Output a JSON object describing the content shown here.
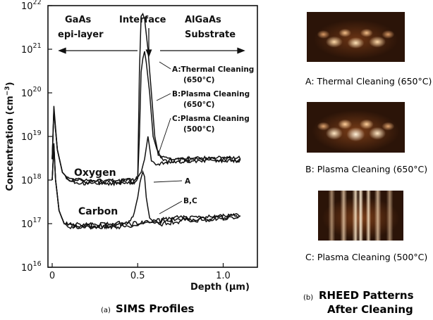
{
  "chart_data": {
    "type": "line",
    "ylabel": "Concentration (cm$^{-3}$)",
    "ylabel_text": "Concentration (cm",
    "ylabel_sup": "−3",
    "ylabel_close": ")",
    "xlabel": "Depth (μm)",
    "y_scale": "log",
    "ylim": [
      1e+16,
      1e+22
    ],
    "xlim": [
      0,
      1.2
    ],
    "x_ticks": [
      "0",
      "0.5",
      "1.0"
    ],
    "y_ticks": [
      {
        "base": "10",
        "exp": "16"
      },
      {
        "base": "10",
        "exp": "17"
      },
      {
        "base": "10",
        "exp": "18"
      },
      {
        "base": "10",
        "exp": "19"
      },
      {
        "base": "10",
        "exp": "20"
      },
      {
        "base": "10",
        "exp": "21"
      },
      {
        "base": "10",
        "exp": "22"
      }
    ],
    "regions": {
      "left": "GaAs epi-layer",
      "left_line1": "GaAs",
      "left_line2": "epi-layer",
      "middle": "Interface",
      "right": "AlGaAs Substrate",
      "right_line1": "AlGaAs",
      "right_line2": "Substrate"
    },
    "annotations": {
      "oxygen": "Oxygen",
      "carbon": "Carbon",
      "a_line1": "A:Thermal Cleaning",
      "a_line2": "(650°C)",
      "b_line1": "B:Plasma Cleaning",
      "b_line2": "(650°C)",
      "c_line1": "C:Plasma Cleaning",
      "c_line2": "(500°C)",
      "carbon_a": "A",
      "carbon_bc": "B,C"
    },
    "series": [
      {
        "name": "Oxygen A",
        "x": [
          0.0,
          0.01,
          0.03,
          0.06,
          0.1,
          0.2,
          0.3,
          0.4,
          0.48,
          0.5,
          0.51,
          0.52,
          0.53,
          0.54,
          0.56,
          0.58,
          0.6,
          0.62,
          0.65,
          0.7,
          0.8,
          0.9,
          1.0,
          1.1
        ],
        "y": [
          3e+18,
          5e+19,
          5e+18,
          1.5e+18,
          1e+18,
          9e+17,
          9e+17,
          9e+17,
          9.5e+17,
          1.1e+18,
          3e+20,
          5e+21,
          7e+21,
          5e+21,
          1e+21,
          1e+20,
          1e+19,
          4e+18,
          3e+18,
          2.8e+18,
          2.9e+18,
          3e+18,
          3e+18,
          3e+18
        ]
      },
      {
        "name": "Oxygen B",
        "x": [
          0.0,
          0.01,
          0.03,
          0.06,
          0.1,
          0.2,
          0.3,
          0.4,
          0.48,
          0.5,
          0.51,
          0.52,
          0.53,
          0.54,
          0.55,
          0.57,
          0.59,
          0.62,
          0.65,
          0.7,
          0.8,
          0.9,
          1.0,
          1.1
        ],
        "y": [
          3e+18,
          4e+19,
          5e+18,
          1.5e+18,
          1e+18,
          9e+17,
          9e+17,
          9e+17,
          9.5e+17,
          1.1e+18,
          1e+19,
          3e+20,
          7e+20,
          8e+20,
          5e+20,
          1e+20,
          1e+19,
          4e+18,
          3e+18,
          2.8e+18,
          2.9e+18,
          3e+18,
          3e+18,
          3e+18
        ]
      },
      {
        "name": "Oxygen C",
        "x": [
          0.0,
          0.01,
          0.03,
          0.06,
          0.1,
          0.2,
          0.3,
          0.4,
          0.48,
          0.5,
          0.52,
          0.54,
          0.56,
          0.58,
          0.6,
          0.62,
          0.65,
          0.7,
          0.8,
          0.9,
          1.0,
          1.1
        ],
        "y": [
          3e+18,
          4e+19,
          5e+18,
          1.5e+18,
          1e+18,
          9e+17,
          9e+17,
          9e+17,
          9.5e+17,
          1.1e+18,
          1.5e+18,
          3e+18,
          1e+19,
          3e+18,
          2.5e+18,
          2.5e+18,
          2.7e+18,
          2.8e+18,
          2.9e+18,
          3e+18,
          3e+18,
          3e+18
        ]
      },
      {
        "name": "Carbon A",
        "x": [
          0.0,
          0.01,
          0.02,
          0.04,
          0.07,
          0.1,
          0.2,
          0.3,
          0.4,
          0.45,
          0.48,
          0.5,
          0.52,
          0.53,
          0.54,
          0.55,
          0.57,
          0.6,
          0.65,
          0.7,
          0.8,
          0.9,
          1.0,
          1.1
        ],
        "y": [
          1e+18,
          7e+18,
          1e+18,
          2e+17,
          1e+17,
          9e+16,
          9e+16,
          9e+16,
          1e+17,
          1.2e+17,
          1.8e+17,
          4e+17,
          1.3e+18,
          1.6e+18,
          1.2e+18,
          4e+17,
          1.3e+17,
          1e+17,
          1e+17,
          1.1e+17,
          1.2e+17,
          1.3e+17,
          1.4e+17,
          1.5e+17
        ]
      },
      {
        "name": "Carbon B",
        "x": [
          0.0,
          0.01,
          0.02,
          0.04,
          0.07,
          0.1,
          0.2,
          0.3,
          0.4,
          0.5,
          0.55,
          0.6,
          0.65,
          0.7,
          0.8,
          0.9,
          1.0,
          1.1
        ],
        "y": [
          1e+18,
          6e+18,
          1e+18,
          2e+17,
          1e+17,
          9e+16,
          9e+16,
          9e+16,
          9e+16,
          9.5e+16,
          1e+17,
          1.1e+17,
          1.2e+17,
          1.3e+17,
          1.3e+17,
          1.3e+17,
          1.4e+17,
          1.5e+17
        ]
      },
      {
        "name": "Carbon C",
        "x": [
          0.0,
          0.01,
          0.02,
          0.04,
          0.07,
          0.1,
          0.2,
          0.3,
          0.4,
          0.5,
          0.55,
          0.6,
          0.65,
          0.7,
          0.8,
          0.9,
          1.0,
          1.1
        ],
        "y": [
          1e+18,
          6e+18,
          1e+18,
          2e+17,
          1e+17,
          9e+16,
          9e+16,
          9e+16,
          9e+16,
          1e+17,
          1.1e+17,
          1.15e+17,
          1.25e+17,
          1.3e+17,
          1.3e+17,
          1.35e+17,
          1.4e+17,
          1.5e+17
        ]
      }
    ]
  },
  "panel_a_label": "(a)",
  "panel_a_title": "SIMS Profiles",
  "panel_b_label": "(b)",
  "panel_b_title_line1": "RHEED Patterns",
  "panel_b_title_line2": "After Cleaning",
  "rheed": [
    {
      "caption": "A: Thermal Cleaning (650°C)",
      "pattern": "spotty"
    },
    {
      "caption": "B: Plasma Cleaning (650°C)",
      "pattern": "spotty"
    },
    {
      "caption": "C: Plasma Cleaning (500°C)",
      "pattern": "streaky"
    }
  ],
  "colors": {
    "ink": "#111111",
    "rheed_bg": "#2b1408",
    "rheed_glow": "#ffe6c0"
  }
}
